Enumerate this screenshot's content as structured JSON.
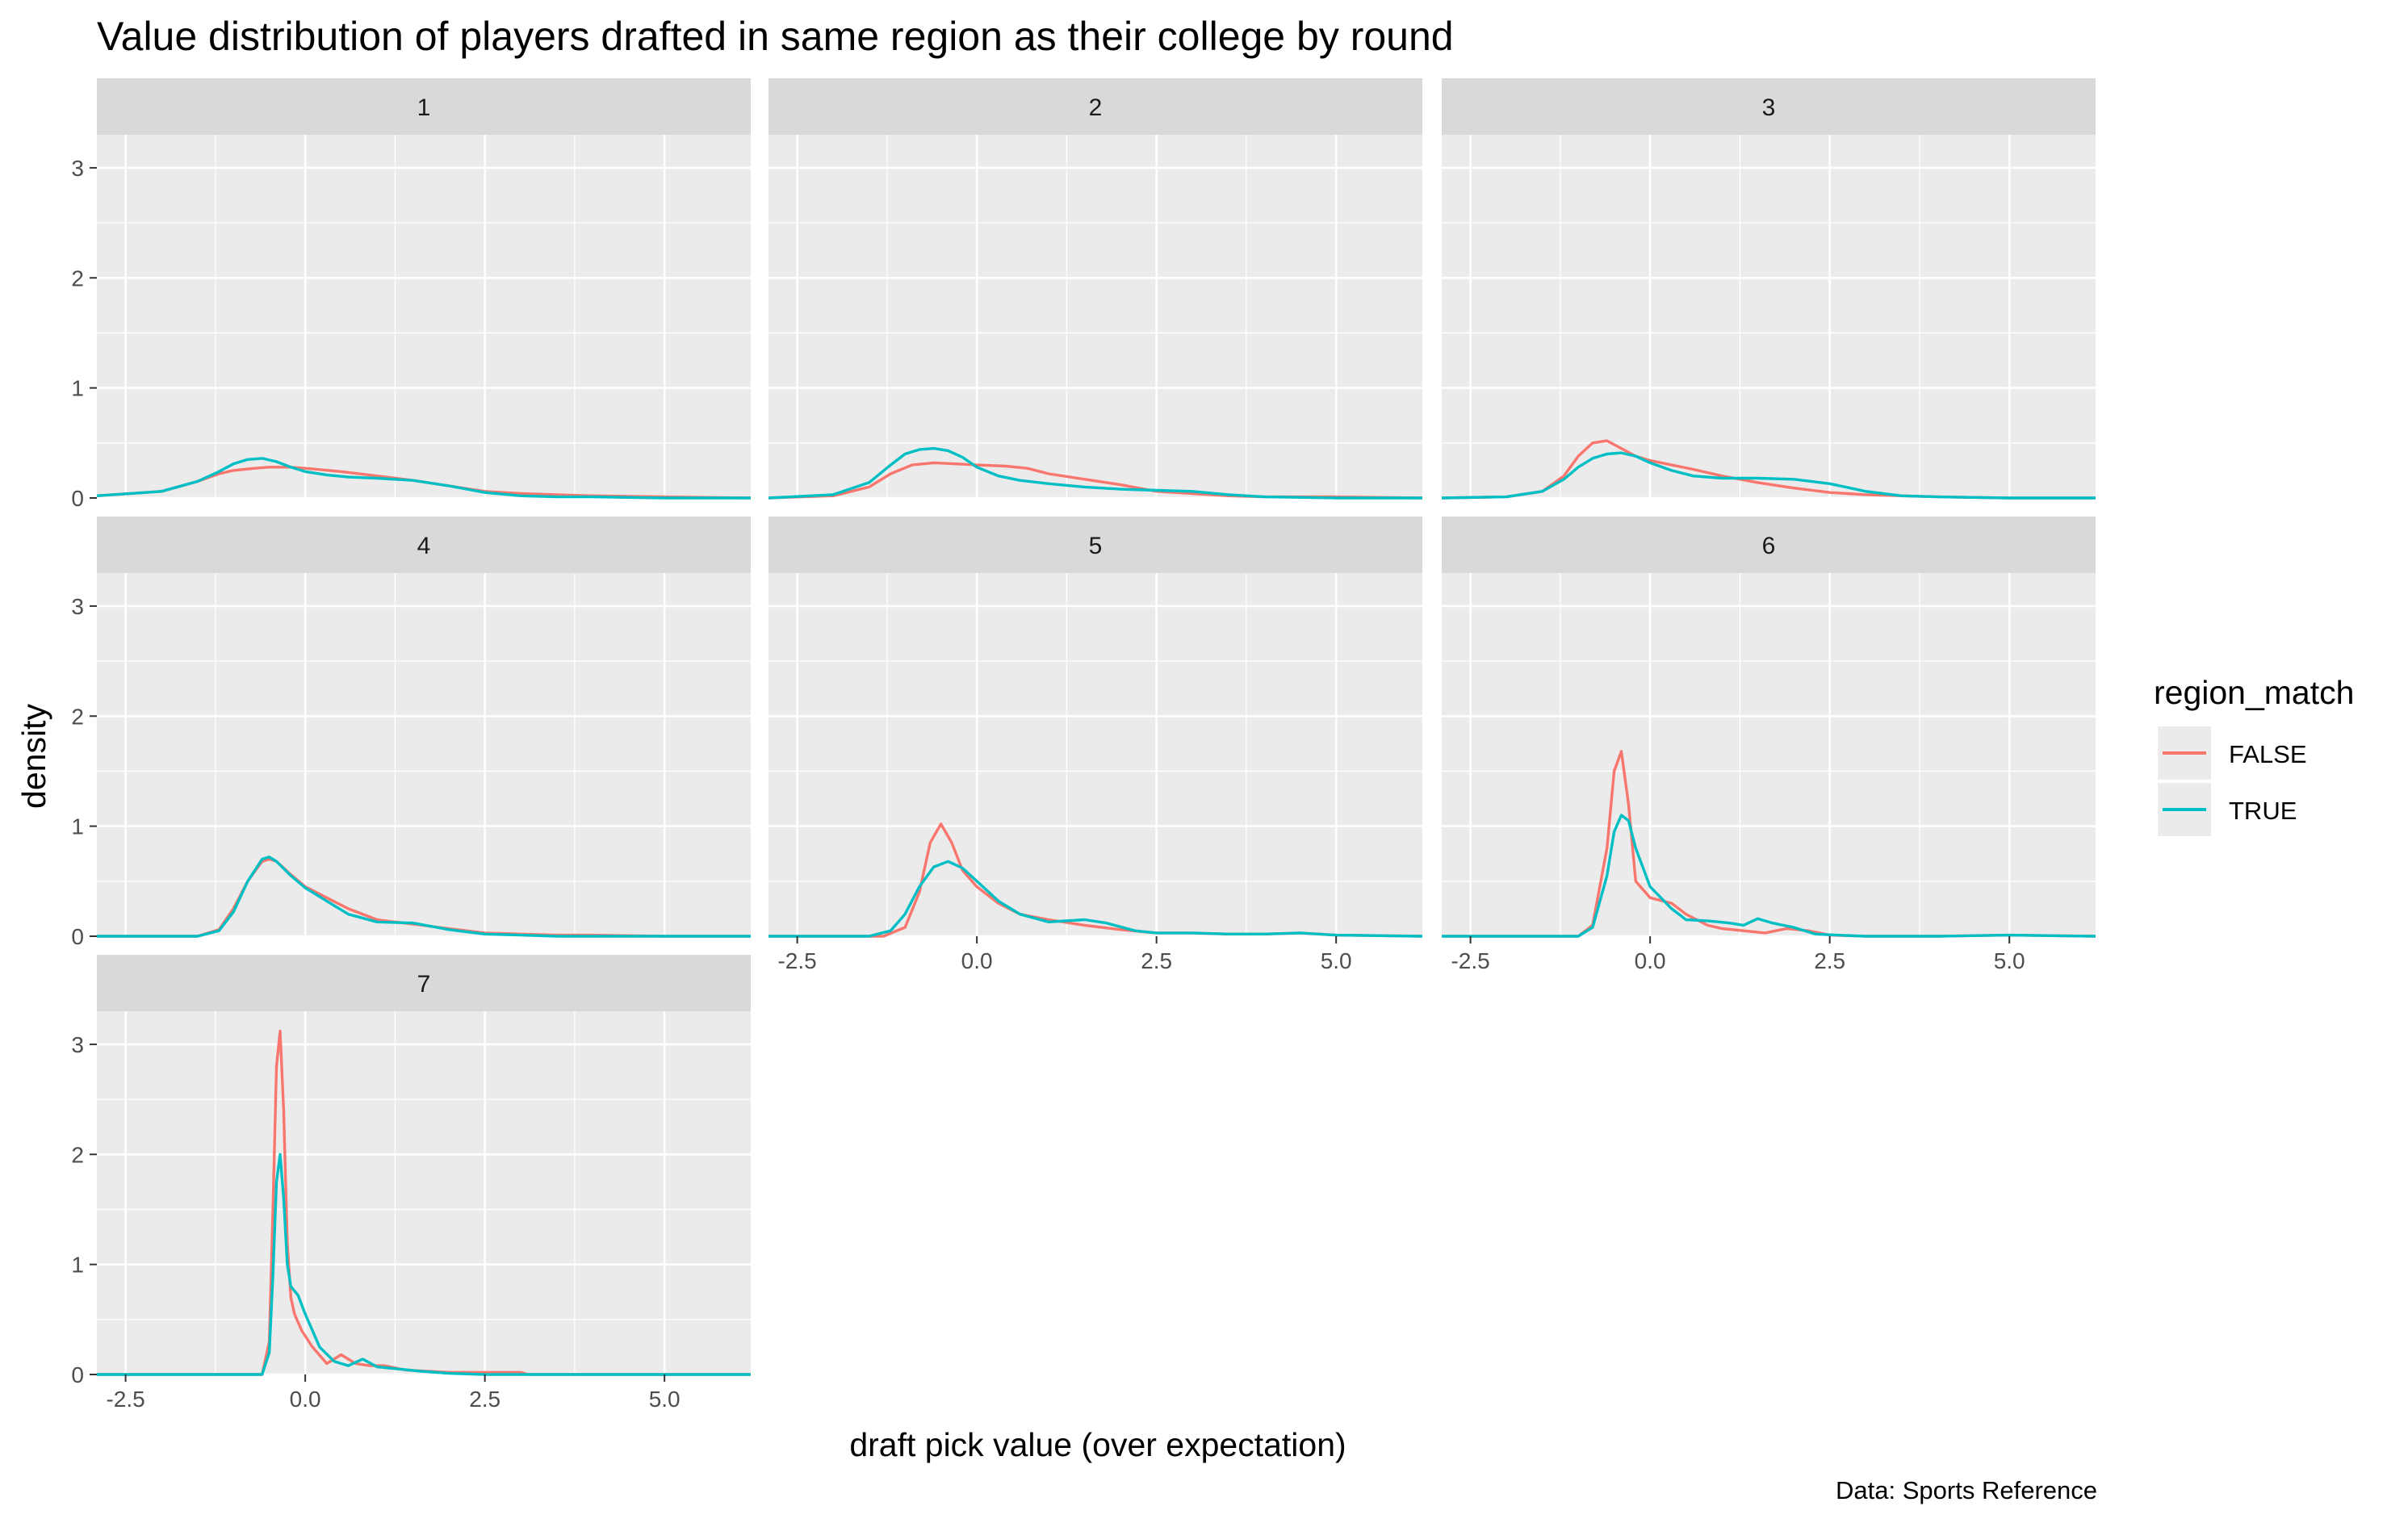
{
  "chart_data": {
    "type": "line",
    "subtype": "density",
    "title": "Value distribution of players drafted in same region as their college by round",
    "xlabel": "draft pick value (over expectation)",
    "ylabel": "density",
    "caption": "Data: Sports Reference",
    "xlim": [
      -2.9,
      6.2
    ],
    "ylim": [
      0,
      3.3
    ],
    "x_ticks": [
      -2.5,
      0.0,
      2.5,
      5.0
    ],
    "x_tick_labels": [
      "-2.5",
      "0.0",
      "2.5",
      "5.0"
    ],
    "y_ticks": [
      0,
      1,
      2,
      3
    ],
    "y_tick_labels": [
      "0",
      "1",
      "2",
      "3"
    ],
    "facet_ncol": 3,
    "grid": true,
    "legend": {
      "title": "region_match",
      "placement": "right",
      "entries": [
        {
          "name": "FALSE",
          "color": "#F8766D"
        },
        {
          "name": "TRUE",
          "color": "#00BFC4"
        }
      ]
    },
    "panels": [
      {
        "label": "1",
        "series": [
          {
            "name": "FALSE",
            "color": "#F8766D",
            "x": [
              -2.9,
              -2.0,
              -1.5,
              -1.2,
              -1.0,
              -0.7,
              -0.5,
              -0.2,
              0.0,
              0.5,
              1.0,
              1.5,
              2.0,
              2.5,
              3.0,
              3.5,
              4.0,
              5.0,
              6.2
            ],
            "y": [
              0.02,
              0.06,
              0.15,
              0.22,
              0.25,
              0.27,
              0.28,
              0.28,
              0.27,
              0.24,
              0.2,
              0.16,
              0.11,
              0.06,
              0.04,
              0.03,
              0.02,
              0.01,
              0.0
            ]
          },
          {
            "name": "TRUE",
            "color": "#00BFC4",
            "x": [
              -2.9,
              -2.0,
              -1.5,
              -1.2,
              -1.0,
              -0.8,
              -0.6,
              -0.4,
              -0.2,
              0.0,
              0.3,
              0.6,
              1.0,
              1.5,
              2.0,
              2.5,
              3.0,
              3.5,
              4.0,
              5.0,
              6.2
            ],
            "y": [
              0.02,
              0.06,
              0.15,
              0.24,
              0.31,
              0.35,
              0.36,
              0.33,
              0.28,
              0.24,
              0.21,
              0.19,
              0.18,
              0.16,
              0.11,
              0.05,
              0.02,
              0.01,
              0.01,
              0.0,
              0.0
            ]
          }
        ]
      },
      {
        "label": "2",
        "series": [
          {
            "name": "FALSE",
            "color": "#F8766D",
            "x": [
              -2.9,
              -2.0,
              -1.5,
              -1.2,
              -0.9,
              -0.6,
              -0.3,
              0.0,
              0.4,
              0.7,
              1.0,
              1.5,
              2.0,
              2.5,
              3.0,
              3.5,
              4.0,
              5.0,
              6.2
            ],
            "y": [
              0.0,
              0.02,
              0.1,
              0.22,
              0.3,
              0.32,
              0.31,
              0.3,
              0.29,
              0.27,
              0.22,
              0.17,
              0.12,
              0.06,
              0.04,
              0.02,
              0.01,
              0.01,
              0.0
            ]
          },
          {
            "name": "TRUE",
            "color": "#00BFC4",
            "x": [
              -2.9,
              -2.0,
              -1.5,
              -1.2,
              -1.0,
              -0.8,
              -0.6,
              -0.4,
              -0.2,
              0.0,
              0.3,
              0.6,
              1.0,
              1.5,
              2.0,
              2.5,
              3.0,
              3.5,
              4.0,
              5.0,
              6.2
            ],
            "y": [
              0.0,
              0.03,
              0.14,
              0.3,
              0.4,
              0.44,
              0.45,
              0.43,
              0.37,
              0.28,
              0.2,
              0.16,
              0.13,
              0.1,
              0.08,
              0.07,
              0.06,
              0.03,
              0.01,
              0.0,
              0.0
            ]
          }
        ]
      },
      {
        "label": "3",
        "series": [
          {
            "name": "FALSE",
            "color": "#F8766D",
            "x": [
              -2.9,
              -2.0,
              -1.5,
              -1.2,
              -1.0,
              -0.8,
              -0.6,
              -0.4,
              -0.2,
              0.0,
              0.3,
              0.6,
              1.0,
              1.5,
              2.0,
              2.5,
              3.0,
              3.5,
              4.0,
              5.0,
              6.2
            ],
            "y": [
              0.0,
              0.01,
              0.06,
              0.2,
              0.38,
              0.5,
              0.52,
              0.45,
              0.38,
              0.34,
              0.3,
              0.26,
              0.2,
              0.14,
              0.09,
              0.05,
              0.03,
              0.02,
              0.01,
              0.0,
              0.0
            ]
          },
          {
            "name": "TRUE",
            "color": "#00BFC4",
            "x": [
              -2.9,
              -2.0,
              -1.5,
              -1.2,
              -1.0,
              -0.8,
              -0.6,
              -0.4,
              -0.2,
              0.0,
              0.3,
              0.6,
              1.0,
              1.5,
              2.0,
              2.5,
              3.0,
              3.5,
              4.0,
              5.0,
              6.2
            ],
            "y": [
              0.0,
              0.01,
              0.06,
              0.17,
              0.28,
              0.36,
              0.4,
              0.41,
              0.38,
              0.32,
              0.25,
              0.2,
              0.18,
              0.18,
              0.17,
              0.13,
              0.06,
              0.02,
              0.01,
              0.0,
              0.0
            ]
          }
        ]
      },
      {
        "label": "4",
        "series": [
          {
            "name": "FALSE",
            "color": "#F8766D",
            "x": [
              -2.9,
              -1.5,
              -1.2,
              -1.0,
              -0.8,
              -0.6,
              -0.5,
              -0.4,
              -0.2,
              0.0,
              0.3,
              0.6,
              1.0,
              1.5,
              2.0,
              2.5,
              3.0,
              3.5,
              4.0,
              5.0,
              6.2
            ],
            "y": [
              0.0,
              0.0,
              0.06,
              0.25,
              0.5,
              0.68,
              0.7,
              0.68,
              0.56,
              0.45,
              0.35,
              0.25,
              0.15,
              0.11,
              0.07,
              0.03,
              0.02,
              0.01,
              0.01,
              0.0,
              0.0
            ]
          },
          {
            "name": "TRUE",
            "color": "#00BFC4",
            "x": [
              -2.9,
              -1.5,
              -1.2,
              -1.0,
              -0.8,
              -0.6,
              -0.5,
              -0.4,
              -0.2,
              0.0,
              0.3,
              0.6,
              1.0,
              1.5,
              2.0,
              2.5,
              3.0,
              3.5,
              4.0,
              5.0,
              6.2
            ],
            "y": [
              0.0,
              0.0,
              0.05,
              0.22,
              0.5,
              0.7,
              0.72,
              0.68,
              0.55,
              0.44,
              0.32,
              0.2,
              0.13,
              0.12,
              0.06,
              0.02,
              0.01,
              0.0,
              0.0,
              0.0,
              0.0
            ]
          }
        ]
      },
      {
        "label": "5",
        "series": [
          {
            "name": "FALSE",
            "color": "#F8766D",
            "x": [
              -2.9,
              -1.3,
              -1.0,
              -0.8,
              -0.65,
              -0.5,
              -0.35,
              -0.2,
              0.0,
              0.3,
              0.6,
              1.0,
              1.5,
              2.0,
              2.5,
              3.0,
              3.5,
              4.0,
              4.5,
              5.0,
              6.2
            ],
            "y": [
              0.0,
              0.0,
              0.08,
              0.4,
              0.85,
              1.02,
              0.85,
              0.6,
              0.45,
              0.3,
              0.2,
              0.15,
              0.1,
              0.06,
              0.03,
              0.03,
              0.02,
              0.02,
              0.03,
              0.01,
              0.0
            ]
          },
          {
            "name": "TRUE",
            "color": "#00BFC4",
            "x": [
              -2.9,
              -1.5,
              -1.2,
              -1.0,
              -0.8,
              -0.6,
              -0.4,
              -0.2,
              0.0,
              0.3,
              0.6,
              1.0,
              1.5,
              1.8,
              2.2,
              2.5,
              3.0,
              3.5,
              4.0,
              4.5,
              5.0,
              6.2
            ],
            "y": [
              0.0,
              0.0,
              0.05,
              0.2,
              0.45,
              0.63,
              0.68,
              0.62,
              0.5,
              0.32,
              0.2,
              0.13,
              0.15,
              0.12,
              0.05,
              0.03,
              0.03,
              0.02,
              0.02,
              0.03,
              0.01,
              0.0
            ]
          }
        ]
      },
      {
        "label": "6",
        "series": [
          {
            "name": "FALSE",
            "color": "#F8766D",
            "x": [
              -2.9,
              -1.0,
              -0.8,
              -0.6,
              -0.5,
              -0.4,
              -0.3,
              -0.2,
              0.0,
              0.3,
              0.5,
              0.8,
              1.0,
              1.3,
              1.6,
              1.9,
              2.2,
              2.5,
              3.0,
              4.0,
              5.0,
              6.2
            ],
            "y": [
              0.0,
              0.0,
              0.1,
              0.8,
              1.5,
              1.68,
              1.2,
              0.5,
              0.35,
              0.3,
              0.2,
              0.1,
              0.07,
              0.05,
              0.03,
              0.07,
              0.05,
              0.01,
              0.0,
              0.0,
              0.01,
              0.0
            ]
          },
          {
            "name": "TRUE",
            "color": "#00BFC4",
            "x": [
              -2.9,
              -1.0,
              -0.8,
              -0.6,
              -0.5,
              -0.4,
              -0.3,
              -0.2,
              0.0,
              0.3,
              0.5,
              0.8,
              1.1,
              1.3,
              1.5,
              1.7,
              2.0,
              2.3,
              2.6,
              3.0,
              4.0,
              5.0,
              6.2
            ],
            "y": [
              0.0,
              0.0,
              0.08,
              0.55,
              0.95,
              1.1,
              1.05,
              0.8,
              0.45,
              0.25,
              0.15,
              0.14,
              0.12,
              0.1,
              0.16,
              0.12,
              0.08,
              0.02,
              0.01,
              0.0,
              0.0,
              0.01,
              0.0
            ]
          }
        ]
      },
      {
        "label": "7",
        "series": [
          {
            "name": "FALSE",
            "color": "#F8766D",
            "x": [
              -2.9,
              -0.6,
              -0.5,
              -0.45,
              -0.4,
              -0.35,
              -0.3,
              -0.25,
              -0.2,
              -0.15,
              -0.05,
              0.1,
              0.3,
              0.5,
              0.7,
              0.9,
              1.1,
              1.4,
              1.7,
              2.0,
              2.5,
              3.0,
              3.1,
              6.2
            ],
            "y": [
              0.0,
              0.0,
              0.3,
              1.5,
              2.8,
              3.12,
              2.4,
              1.2,
              0.7,
              0.55,
              0.4,
              0.25,
              0.1,
              0.18,
              0.1,
              0.08,
              0.08,
              0.04,
              0.03,
              0.02,
              0.02,
              0.02,
              0.0,
              0.0
            ]
          },
          {
            "name": "TRUE",
            "color": "#00BFC4",
            "x": [
              -2.9,
              -0.6,
              -0.5,
              -0.45,
              -0.4,
              -0.35,
              -0.3,
              -0.25,
              -0.2,
              -0.1,
              0.0,
              0.2,
              0.4,
              0.6,
              0.8,
              1.0,
              1.3,
              1.6,
              2.0,
              2.5,
              3.0,
              6.2
            ],
            "y": [
              0.0,
              0.0,
              0.2,
              0.9,
              1.75,
              2.0,
              1.6,
              1.0,
              0.8,
              0.72,
              0.55,
              0.25,
              0.12,
              0.08,
              0.14,
              0.07,
              0.05,
              0.03,
              0.01,
              0.0,
              0.0,
              0.0
            ]
          }
        ]
      }
    ]
  }
}
